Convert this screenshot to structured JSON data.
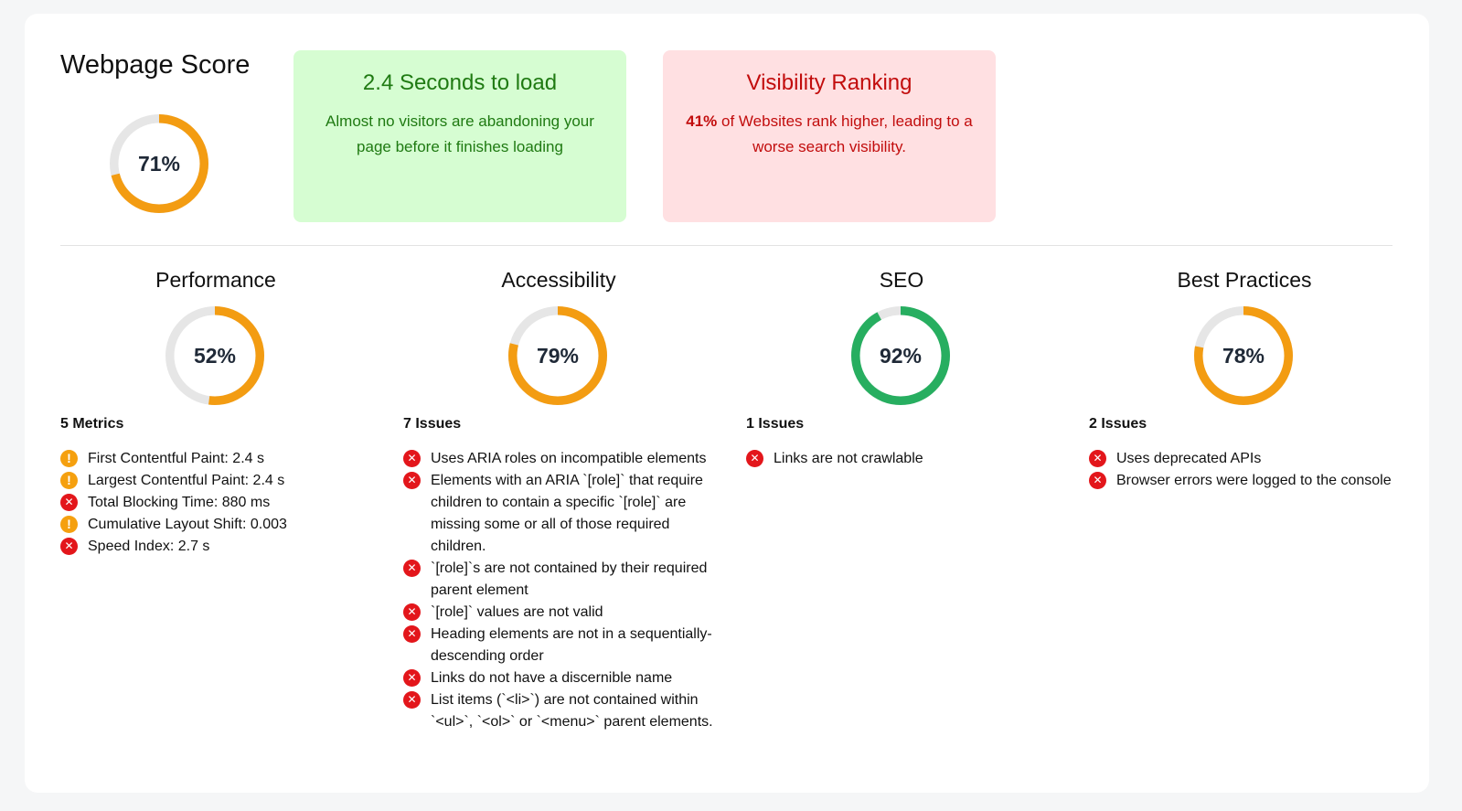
{
  "colors": {
    "warning": "#f39c12",
    "good": "#27ae60",
    "track": "#e6e6e6",
    "error": "#e3161b"
  },
  "overall": {
    "title": "Webpage Score",
    "score": 71,
    "score_label": "71%",
    "status": "warning"
  },
  "load_box": {
    "title": "2.4 Seconds to load",
    "text": "Almost no visitors are abandoning your page before it finishes loading"
  },
  "visibility_box": {
    "title": "Visibility Ranking",
    "highlight": "41%",
    "text": " of Websites rank higher, leading to a worse search visibility."
  },
  "categories": [
    {
      "title": "Performance",
      "score": 52,
      "score_label": "52%",
      "status": "warning",
      "count_label": "5 Metrics",
      "items": [
        {
          "text": "First Contentful Paint: 2.4 s",
          "status": "warning"
        },
        {
          "text": "Largest Contentful Paint: 2.4 s",
          "status": "warning"
        },
        {
          "text": "Total Blocking Time: 880 ms",
          "status": "error"
        },
        {
          "text": "Cumulative Layout Shift: 0.003",
          "status": "warning"
        },
        {
          "text": "Speed Index: 2.7 s",
          "status": "error"
        }
      ]
    },
    {
      "title": "Accessibility",
      "score": 79,
      "score_label": "79%",
      "status": "warning",
      "count_label": "7 Issues",
      "items": [
        {
          "text": "Uses ARIA roles on incompatible elements",
          "status": "error"
        },
        {
          "text": "Elements with an ARIA `[role]` that require children to contain a specific `[role]` are missing some or all of those required children.",
          "status": "error"
        },
        {
          "text": "`[role]`s are not contained by their required parent element",
          "status": "error"
        },
        {
          "text": "`[role]` values are not valid",
          "status": "error"
        },
        {
          "text": "Heading elements are not in a sequentially-descending order",
          "status": "error"
        },
        {
          "text": "Links do not have a discernible name",
          "status": "error"
        },
        {
          "text": "List items (`<li>`) are not contained within `<ul>`, `<ol>` or `<menu>` parent elements.",
          "status": "error"
        }
      ]
    },
    {
      "title": "SEO",
      "score": 92,
      "score_label": "92%",
      "status": "good",
      "count_label": "1 Issues",
      "items": [
        {
          "text": "Links are not crawlable",
          "status": "error"
        }
      ]
    },
    {
      "title": "Best Practices",
      "score": 78,
      "score_label": "78%",
      "status": "warning",
      "count_label": "2 Issues",
      "items": [
        {
          "text": "Uses deprecated APIs",
          "status": "error"
        },
        {
          "text": "Browser errors were logged to the console",
          "status": "error"
        }
      ]
    }
  ]
}
